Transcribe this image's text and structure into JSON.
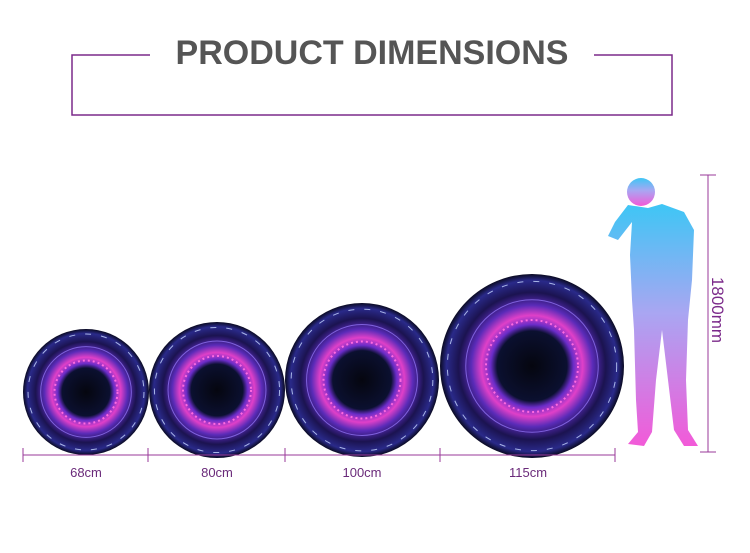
{
  "header": {
    "title": "PRODUCT DIMENSIONS"
  },
  "products": [
    {
      "label": "68cm"
    },
    {
      "label": "80cm"
    },
    {
      "label": "100cm"
    },
    {
      "label": "115cm"
    }
  ],
  "person": {
    "height_label": "1800mm"
  }
}
